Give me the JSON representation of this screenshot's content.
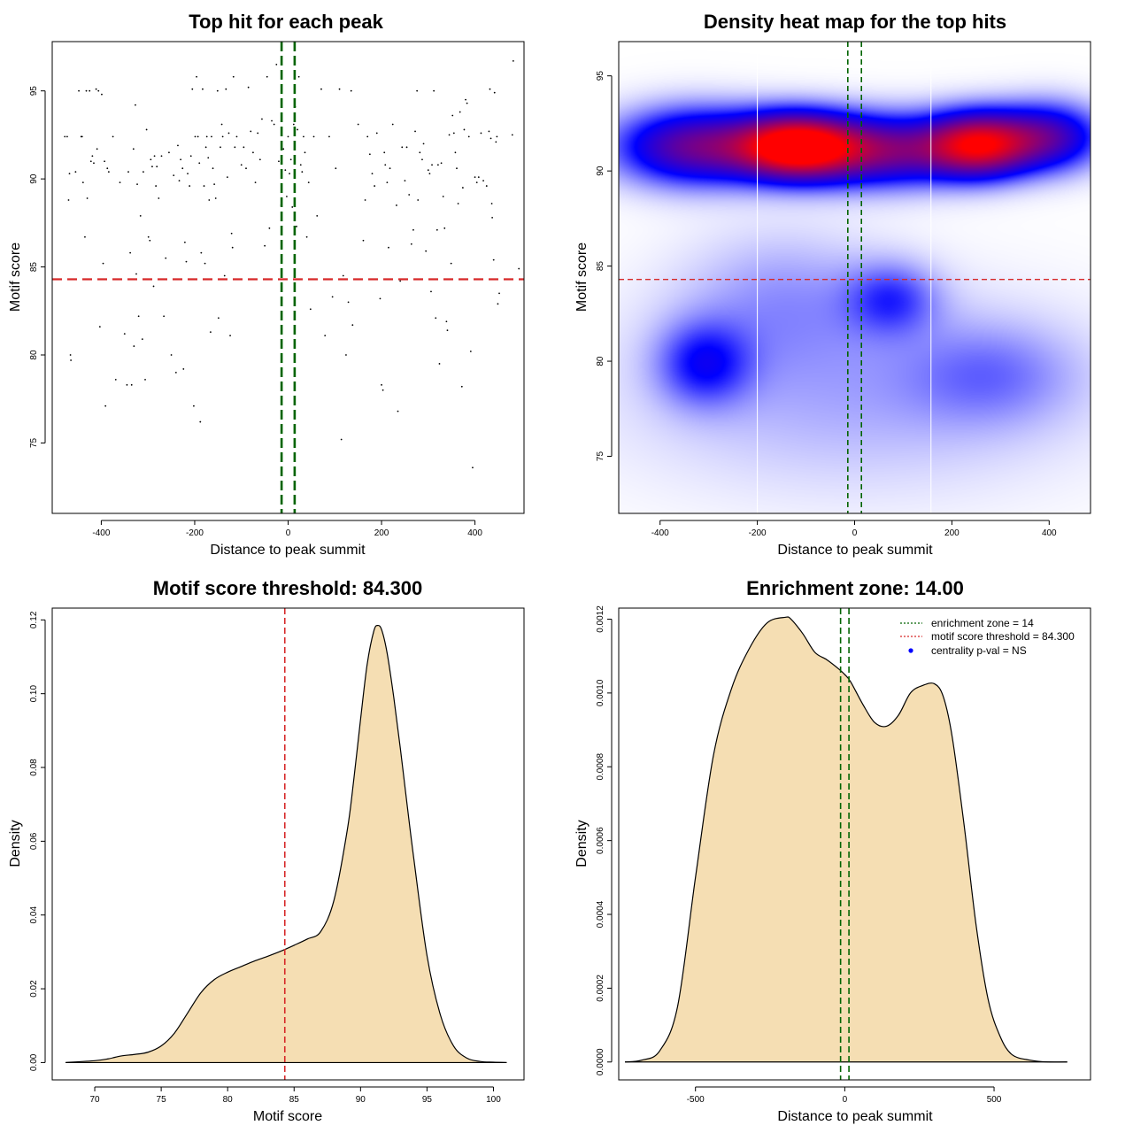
{
  "chart_data": [
    {
      "type": "scatter",
      "title": "Top hit for each peak",
      "xlabel": "Distance to peak summit",
      "ylabel": "Motif score",
      "xlim": [
        -505,
        505
      ],
      "ylim": [
        71,
        97.8
      ],
      "xticks": [
        -400,
        -200,
        0,
        200,
        400
      ],
      "yticks": [
        75,
        80,
        85,
        90,
        95
      ],
      "hline": 84.3,
      "vlines": [
        -14,
        14
      ],
      "points": [
        [
          -478,
          92.4
        ],
        [
          -473,
          92.4
        ],
        [
          -470,
          88.8
        ],
        [
          -468,
          90.3
        ],
        [
          -466,
          80
        ],
        [
          -465,
          79.7
        ],
        [
          -455,
          90.4
        ],
        [
          -448,
          95
        ],
        [
          -443,
          92.4
        ],
        [
          -441,
          92.4
        ],
        [
          -439,
          89.8
        ],
        [
          -435,
          86.7
        ],
        [
          -432,
          95
        ],
        [
          -430,
          88.9
        ],
        [
          -425,
          95
        ],
        [
          -422,
          91
        ],
        [
          -419,
          91.3
        ],
        [
          -416,
          90.9
        ],
        [
          -411,
          95.1
        ],
        [
          -409,
          91.7
        ],
        [
          -406,
          95
        ],
        [
          -403,
          81.6
        ],
        [
          -399,
          94.8
        ],
        [
          -396,
          85.2
        ],
        [
          -393,
          91
        ],
        [
          -391,
          77.1
        ],
        [
          -387,
          90.6
        ],
        [
          -384,
          90.4
        ],
        [
          -375,
          92.4
        ],
        [
          -369,
          78.6
        ],
        [
          -360,
          89.8
        ],
        [
          -350,
          81.2
        ],
        [
          -345,
          78.3
        ],
        [
          -342,
          90.4
        ],
        [
          -338,
          85.8
        ],
        [
          -335,
          78.3
        ],
        [
          -331,
          91.7
        ],
        [
          -330,
          80.5
        ],
        [
          -327,
          94.2
        ],
        [
          -325,
          84.6
        ],
        [
          -323,
          89.7
        ],
        [
          -320,
          82.2
        ],
        [
          -316,
          87.9
        ],
        [
          -312,
          80.9
        ],
        [
          -310,
          90.4
        ],
        [
          -306,
          78.6
        ],
        [
          -303,
          92.8
        ],
        [
          -299,
          86.7
        ],
        [
          -296,
          86.5
        ],
        [
          -294,
          91.1
        ],
        [
          -291,
          90.7
        ],
        [
          -288,
          83.9
        ],
        [
          -286,
          91.3
        ],
        [
          -283,
          89.6
        ],
        [
          -281,
          90.7
        ],
        [
          -277,
          88.9
        ],
        [
          -271,
          91.3
        ],
        [
          -266,
          82.2
        ],
        [
          -262,
          85.5
        ],
        [
          -255,
          91.5
        ],
        [
          -250,
          80
        ],
        [
          -245,
          90.2
        ],
        [
          -240,
          79
        ],
        [
          -236,
          91.9
        ],
        [
          -233,
          89.9
        ],
        [
          -230,
          91.1
        ],
        [
          -226,
          90.6
        ],
        [
          -224,
          79.2
        ],
        [
          -221,
          86.4
        ],
        [
          -218,
          85.3
        ],
        [
          -215,
          90.3
        ],
        [
          -211,
          89.6
        ],
        [
          -208,
          91.3
        ],
        [
          -205,
          95.1
        ],
        [
          -202,
          77.1
        ],
        [
          -199,
          92.4
        ],
        [
          -196,
          95.8
        ],
        [
          -193,
          92.4
        ],
        [
          -190,
          90.9
        ],
        [
          -188,
          76.2
        ],
        [
          -186,
          85.8
        ],
        [
          -183,
          95.1
        ],
        [
          -180,
          89.6
        ],
        [
          -178,
          85.2
        ],
        [
          -176,
          91.8
        ],
        [
          -174,
          92.4
        ],
        [
          -171,
          91.2
        ],
        [
          -169,
          88.8
        ],
        [
          -166,
          81.3
        ],
        [
          -164,
          92.4
        ],
        [
          -161,
          90.6
        ],
        [
          -158,
          89.7
        ],
        [
          -155,
          88.9
        ],
        [
          -151,
          95
        ],
        [
          -149,
          82.1
        ],
        [
          -145,
          91.8
        ],
        [
          -142,
          93.1
        ],
        [
          -140,
          92.4
        ],
        [
          -136,
          84.5
        ],
        [
          -133,
          95.1
        ],
        [
          -130,
          90.1
        ],
        [
          -127,
          92.6
        ],
        [
          -124,
          81.1
        ],
        [
          -121,
          86.9
        ],
        [
          -119,
          86.1
        ],
        [
          -117,
          95.8
        ],
        [
          -114,
          91.8
        ],
        [
          -110,
          92.4
        ],
        [
          -100,
          90.8
        ],
        [
          -95,
          91.8
        ],
        [
          -90,
          90.6
        ],
        [
          -85,
          95.2
        ],
        [
          -80,
          92.7
        ],
        [
          -75,
          91.5
        ],
        [
          -70,
          89.8
        ],
        [
          -65,
          92.6
        ],
        [
          -60,
          91.1
        ],
        [
          -56,
          93.4
        ],
        [
          -50,
          86.2
        ],
        [
          -45,
          95.8
        ],
        [
          -40,
          87.2
        ],
        [
          -35,
          93.3
        ],
        [
          -30,
          93.1
        ],
        [
          -25,
          96.5
        ],
        [
          -20,
          91
        ],
        [
          -15,
          88.5
        ],
        [
          -10,
          91.7
        ],
        [
          -6,
          90.5
        ],
        [
          -3,
          89
        ],
        [
          0,
          92.4
        ],
        [
          3,
          90.3
        ],
        [
          6,
          91.1
        ],
        [
          9,
          88.4
        ],
        [
          12,
          93.1
        ],
        [
          15,
          94.1
        ],
        [
          18,
          87.3
        ],
        [
          20,
          92.8
        ],
        [
          23,
          95.8
        ],
        [
          27,
          90.8
        ],
        [
          30,
          90.4
        ],
        [
          33,
          92.4
        ],
        [
          36,
          91.5
        ],
        [
          40,
          86.7
        ],
        [
          44,
          89.8
        ],
        [
          48,
          82.6
        ],
        [
          55,
          92.4
        ],
        [
          62,
          87.9
        ],
        [
          71,
          95.1
        ],
        [
          79,
          81.1
        ],
        [
          88,
          92.4
        ],
        [
          95,
          83.3
        ],
        [
          102,
          90.6
        ],
        [
          110,
          95.1
        ],
        [
          114,
          75.2
        ],
        [
          118,
          84.5
        ],
        [
          124,
          80
        ],
        [
          129,
          83
        ],
        [
          135,
          95
        ],
        [
          138,
          81.7
        ],
        [
          150,
          93.1
        ],
        [
          161,
          86.5
        ],
        [
          165,
          88.8
        ],
        [
          170,
          92.4
        ],
        [
          175,
          91.4
        ],
        [
          180,
          90.3
        ],
        [
          185,
          89.6
        ],
        [
          190,
          92.6
        ],
        [
          197,
          83.2
        ],
        [
          200,
          78.3
        ],
        [
          203,
          78
        ],
        [
          206,
          91.5
        ],
        [
          208,
          90.8
        ],
        [
          212,
          89.8
        ],
        [
          215,
          86.1
        ],
        [
          218,
          90.6
        ],
        [
          224,
          93.1
        ],
        [
          232,
          88.5
        ],
        [
          235,
          76.8
        ],
        [
          240,
          84.2
        ],
        [
          244,
          91.8
        ],
        [
          250,
          89.9
        ],
        [
          254,
          91.8
        ],
        [
          259,
          89.1
        ],
        [
          264,
          86.3
        ],
        [
          268,
          87.1
        ],
        [
          272,
          92.7
        ],
        [
          276,
          95
        ],
        [
          278,
          88.8
        ],
        [
          282,
          91.5
        ],
        [
          287,
          91.1
        ],
        [
          290,
          92
        ],
        [
          295,
          85.9
        ],
        [
          300,
          90.5
        ],
        [
          303,
          90.3
        ],
        [
          306,
          83.6
        ],
        [
          308,
          90.8
        ],
        [
          312,
          95
        ],
        [
          316,
          82.1
        ],
        [
          319,
          87.1
        ],
        [
          321,
          90.8
        ],
        [
          324,
          79.5
        ],
        [
          328,
          90.9
        ],
        [
          332,
          89
        ],
        [
          335,
          87.2
        ],
        [
          339,
          81.9
        ],
        [
          341,
          81.4
        ],
        [
          345,
          92.5
        ],
        [
          349,
          85.2
        ],
        [
          352,
          93.6
        ],
        [
          355,
          92.6
        ],
        [
          358,
          91.5
        ],
        [
          361,
          90.6
        ],
        [
          364,
          88.6
        ],
        [
          368,
          93.8
        ],
        [
          372,
          78.2
        ],
        [
          374,
          89.5
        ],
        [
          377,
          92.8
        ],
        [
          380,
          94.5
        ],
        [
          383,
          94.3
        ],
        [
          387,
          92.4
        ],
        [
          391,
          80.2
        ],
        [
          395,
          73.6
        ],
        [
          400,
          90.1
        ],
        [
          404,
          89.8
        ],
        [
          408,
          90.1
        ],
        [
          413,
          92.6
        ],
        [
          418,
          89.9
        ],
        [
          425,
          89.6
        ],
        [
          430,
          92.7
        ],
        [
          432,
          95.1
        ],
        [
          434,
          92.3
        ],
        [
          436,
          88.6
        ],
        [
          437,
          87.8
        ],
        [
          440,
          85.4
        ],
        [
          442,
          94.9
        ],
        [
          445,
          92.1
        ],
        [
          447,
          92.4
        ],
        [
          449,
          82.9
        ],
        [
          452,
          83.5
        ],
        [
          480,
          92.5
        ],
        [
          482,
          96.7
        ],
        [
          494,
          84.9
        ]
      ]
    },
    {
      "type": "heatmap",
      "title": "Density heat map for the top hits",
      "xlabel": "Distance to peak summit",
      "ylabel": "Motif score",
      "xlim": [
        -485,
        485
      ],
      "ylim": [
        72,
        96.8
      ],
      "xticks": [
        -400,
        -200,
        0,
        200,
        400
      ],
      "yticks": [
        75,
        80,
        85,
        90,
        95
      ],
      "hline": 84.3,
      "vlines": [
        -14,
        14
      ],
      "white_vlines": [
        -200,
        157
      ],
      "colors": {
        "low": "#ffffff",
        "mid": "#0000ff",
        "high": "#ff0000"
      },
      "density_kernels": [
        {
          "x": -330,
          "y": 91.3,
          "sx": 110,
          "sy": 1.35,
          "w": 0.55
        },
        {
          "x": -120,
          "y": 91.3,
          "sx": 85,
          "sy": 1.15,
          "w": 1.0
        },
        {
          "x": 60,
          "y": 91.1,
          "sx": 110,
          "sy": 1.25,
          "w": 0.55
        },
        {
          "x": 255,
          "y": 91.4,
          "sx": 75,
          "sy": 1.15,
          "w": 0.82
        },
        {
          "x": 400,
          "y": 91.8,
          "sx": 75,
          "sy": 1.2,
          "w": 0.45
        },
        {
          "x": -310,
          "y": 79.9,
          "sx": 65,
          "sy": 1.5,
          "w": 0.25
        },
        {
          "x": 75,
          "y": 83.3,
          "sx": 65,
          "sy": 1.3,
          "w": 0.2
        },
        {
          "x": 280,
          "y": 79.3,
          "sx": 120,
          "sy": 1.8,
          "w": 0.12
        },
        {
          "x": -150,
          "y": 83.3,
          "sx": 140,
          "sy": 2.5,
          "w": 0.1
        },
        {
          "x": 0,
          "y": 78.5,
          "sx": 330,
          "sy": 3.6,
          "w": 0.1
        }
      ]
    },
    {
      "type": "area",
      "title": "Motif score threshold: 84.300",
      "xlabel": "Motif score",
      "ylabel": "Density",
      "xlim": [
        66.8,
        102.3
      ],
      "ylim": [
        -0.0047,
        0.1232
      ],
      "xticks": [
        70,
        75,
        80,
        85,
        90,
        95,
        100
      ],
      "yticks": [
        "0.00",
        "0.02",
        "0.04",
        "0.06",
        "0.08",
        "0.10",
        "0.12"
      ],
      "vline": 84.3,
      "fill": "#f5deb3",
      "x": [
        67.8,
        70,
        71,
        72,
        73,
        74,
        75,
        76,
        77,
        78,
        79,
        80,
        81,
        82,
        83,
        84,
        85,
        86,
        87,
        88,
        89,
        89.5,
        90,
        90.5,
        91,
        91.3,
        91.6,
        92,
        92.5,
        93,
        93.5,
        94,
        95,
        96,
        97,
        98,
        99,
        100,
        101
      ],
      "values": [
        0,
        0.0005,
        0.001,
        0.0018,
        0.0022,
        0.0028,
        0.0045,
        0.008,
        0.0135,
        0.019,
        0.0225,
        0.0245,
        0.026,
        0.0275,
        0.0288,
        0.0302,
        0.0318,
        0.0335,
        0.0355,
        0.044,
        0.063,
        0.077,
        0.093,
        0.108,
        0.117,
        0.1185,
        0.1172,
        0.111,
        0.099,
        0.085,
        0.07,
        0.0555,
        0.029,
        0.013,
        0.0045,
        0.0012,
        0.0003,
        0.0001,
        0
      ]
    },
    {
      "type": "area",
      "title": "Enrichment zone: 14.00",
      "xlabel": "Distance to peak summit",
      "ylabel": "Density",
      "xlim": [
        -757,
        823
      ],
      "ylim": [
        -4.85e-05,
        0.00123
      ],
      "xticks": [
        -500,
        0,
        500
      ],
      "yticks": [
        "0.0000",
        "0.0002",
        "0.0004",
        "0.0006",
        "0.0008",
        "0.0010",
        "0.0012"
      ],
      "vlines": [
        -14,
        14
      ],
      "fill": "#f5deb3",
      "x": [
        -736,
        -680,
        -620,
        -560,
        -500,
        -440,
        -380,
        -320,
        -260,
        -200,
        -180,
        -140,
        -100,
        -60,
        -20,
        0,
        20,
        60,
        100,
        140,
        180,
        220,
        260,
        300,
        330,
        360,
        400,
        440,
        480,
        520,
        560,
        620,
        680,
        745
      ],
      "values": [
        0,
        5e-06,
        3e-05,
        0.00015,
        0.0005,
        0.00083,
        0.00101,
        0.00112,
        0.00119,
        0.001205,
        0.0012,
        0.00116,
        0.00111,
        0.00109,
        0.001065,
        0.00105,
        0.00103,
        0.00097,
        0.00092,
        0.00091,
        0.00094,
        0.001,
        0.00102,
        0.001025,
        0.00099,
        0.00088,
        0.00064,
        0.00037,
        0.00017,
        7e-05,
        2e-05,
        5e-06,
        0,
        0
      ],
      "legend": [
        {
          "label": "enrichment zone = 14",
          "color": "#006400",
          "style": "dotted"
        },
        {
          "label": "motif score threshold = 84.300",
          "color": "#d62728",
          "style": "dotted"
        },
        {
          "label": "centrality p-val = NS",
          "color": "#0000ff",
          "style": "point"
        }
      ]
    }
  ]
}
